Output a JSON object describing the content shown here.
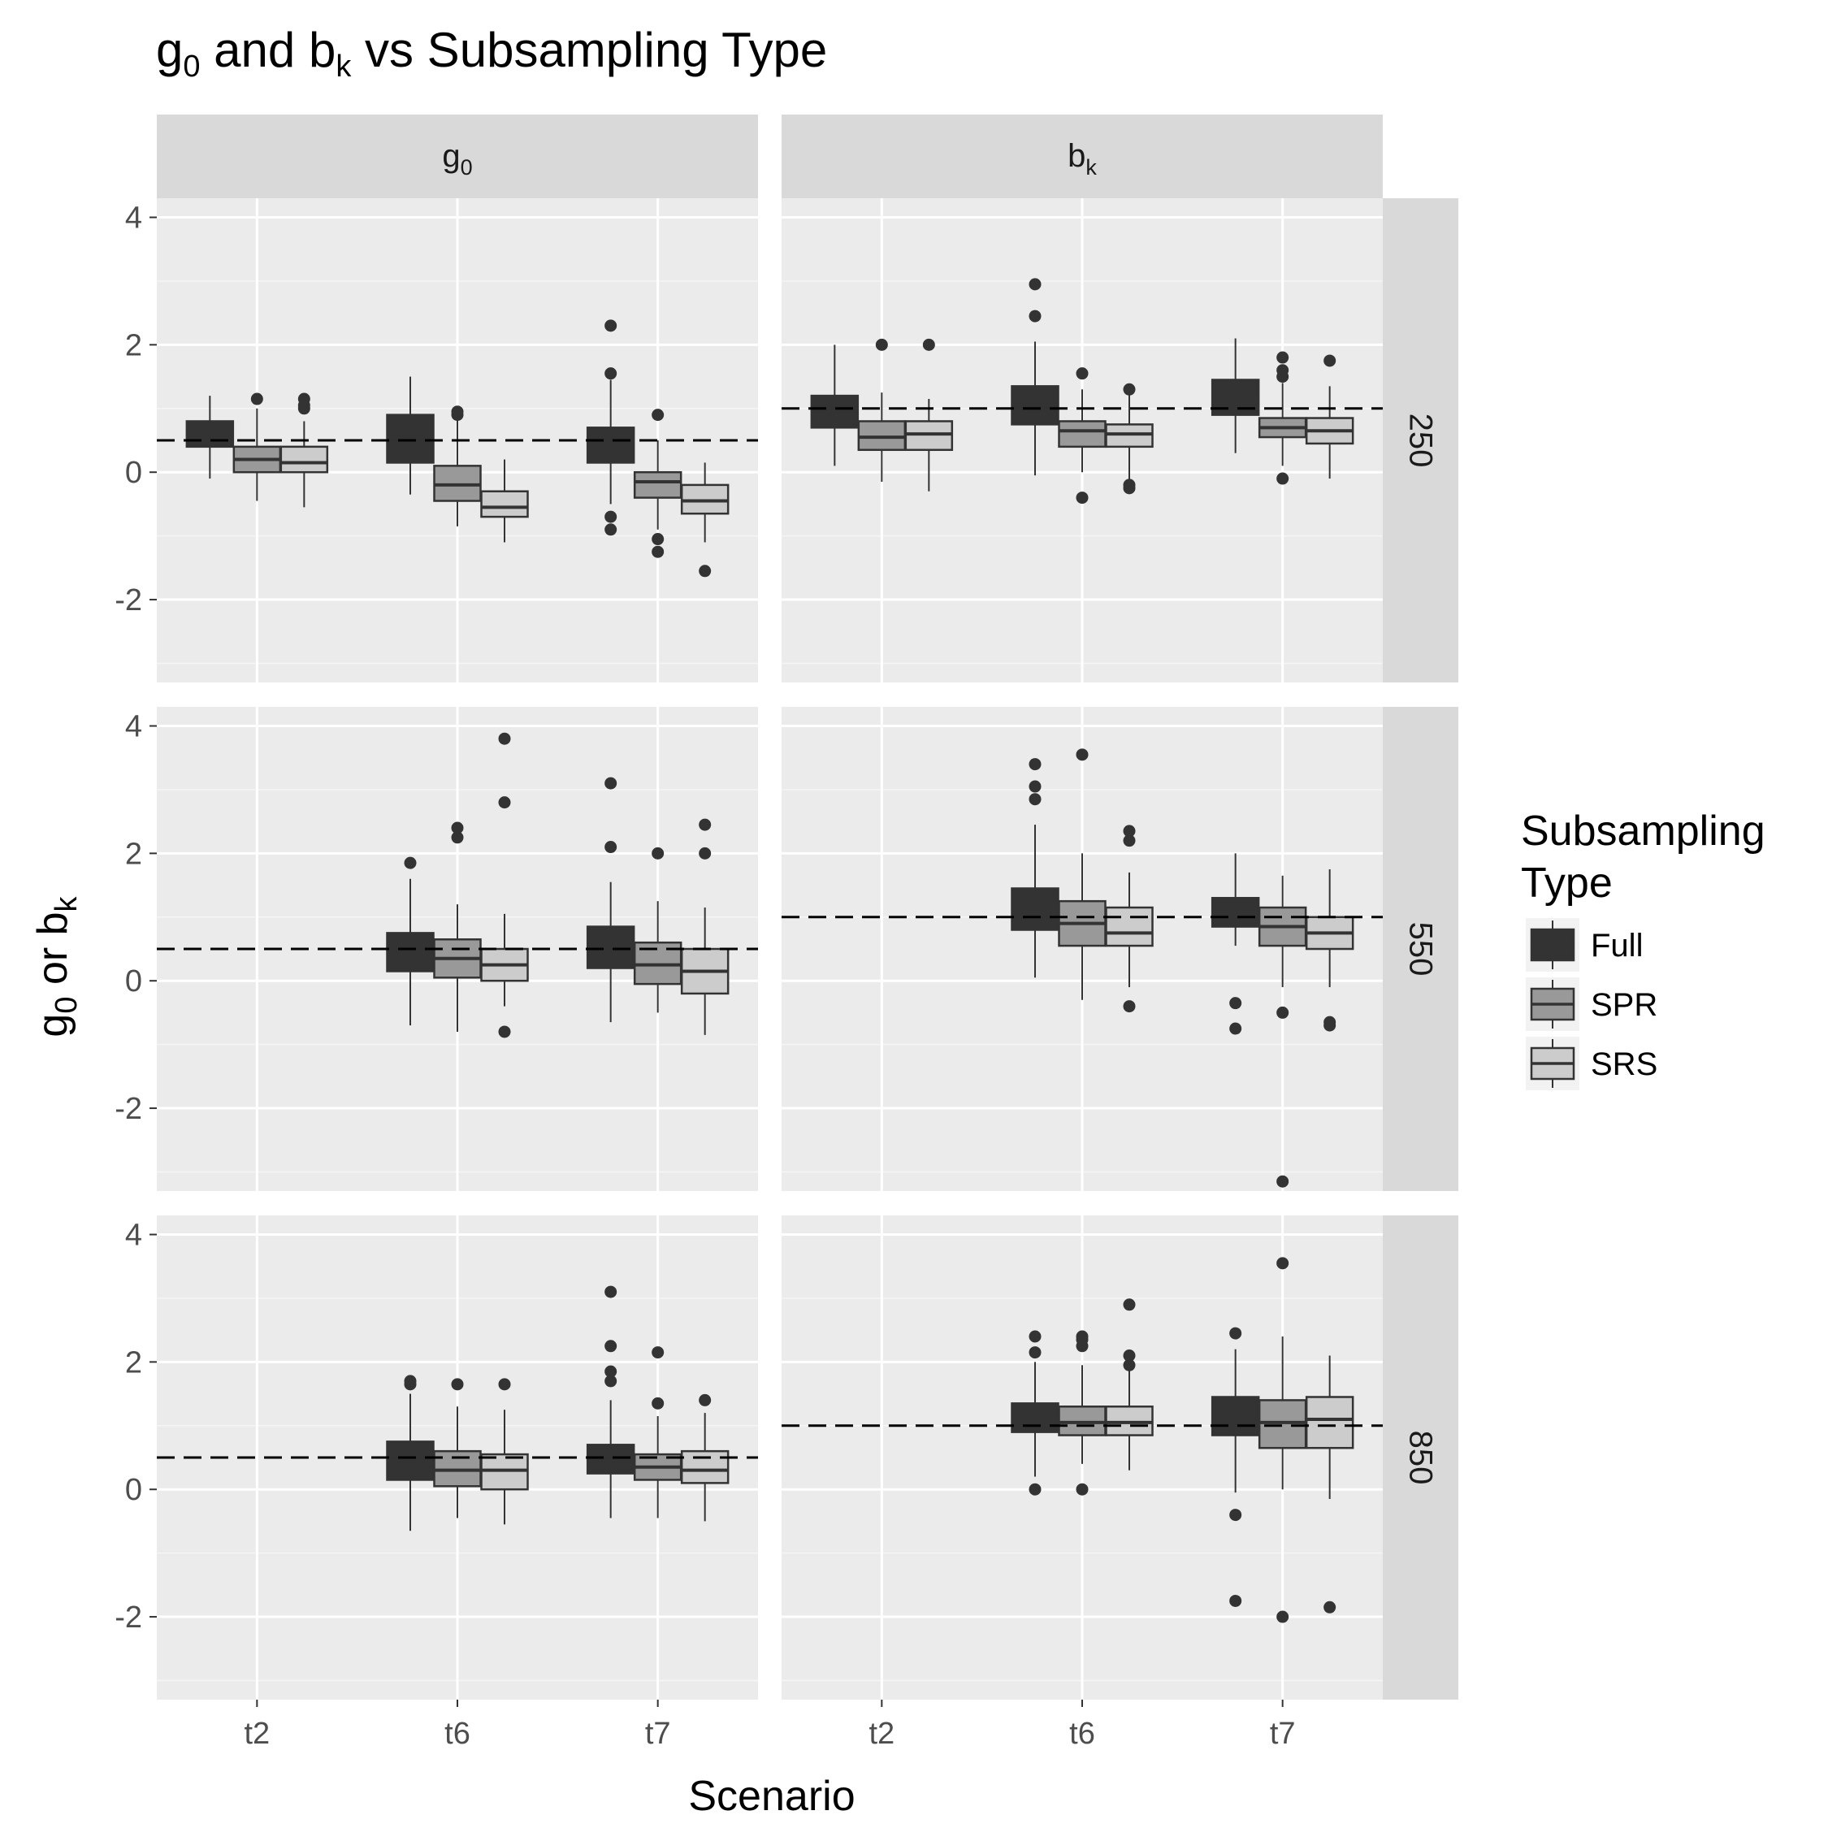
{
  "title": {
    "main": "g",
    "sub": "0",
    "mid": " and b",
    "sub2": "k",
    "rest": " vs Subsampling Type"
  },
  "xlabel": "Scenario",
  "ylabel": {
    "main": "g",
    "sub": "0",
    "mid": " or b",
    "sub2": "k"
  },
  "legend": {
    "title_line1": "Subsampling",
    "title_line2": "Type",
    "placement": "right",
    "items": [
      {
        "label": "Full",
        "color": "#333333"
      },
      {
        "label": "SPR",
        "color": "#999999"
      },
      {
        "label": "SRS",
        "color": "#cccccc"
      }
    ]
  },
  "colors": {
    "panel_bg": "#ebebeb",
    "strip_bg": "#d9d9d9",
    "grid_major": "#ffffff",
    "grid_minor": "#f5f5f5",
    "box_outline": "#333333",
    "reference_line": "#000000"
  },
  "chart_data": {
    "type": "boxplot",
    "facet_columns": [
      {
        "label": "g",
        "sub": "0",
        "reference": 0.5
      },
      {
        "label": "b",
        "sub": "k",
        "reference": 1.0
      }
    ],
    "facet_rows": [
      "250",
      "550",
      "850"
    ],
    "x_categories": [
      "t2",
      "t6",
      "t7"
    ],
    "groups": [
      "Full",
      "SPR",
      "SRS"
    ],
    "ylim": [
      -3.3,
      4.3
    ],
    "y_ticks": [
      -2,
      0,
      2,
      4
    ],
    "grid": true,
    "panels": [
      {
        "row": "250",
        "col": 0,
        "boxes": [
          {
            "x": "t2",
            "group": "Full",
            "min": -0.1,
            "q1": 0.4,
            "median": 0.6,
            "q3": 0.8,
            "max": 1.2,
            "outliers": []
          },
          {
            "x": "t2",
            "group": "SPR",
            "min": -0.45,
            "q1": 0.0,
            "median": 0.2,
            "q3": 0.4,
            "max": 1.0,
            "outliers": [
              1.15
            ]
          },
          {
            "x": "t2",
            "group": "SRS",
            "min": -0.55,
            "q1": 0.0,
            "median": 0.15,
            "q3": 0.4,
            "max": 0.8,
            "outliers": [
              1.0,
              1.05,
              1.15
            ]
          },
          {
            "x": "t6",
            "group": "Full",
            "min": -0.35,
            "q1": 0.15,
            "median": 0.55,
            "q3": 0.9,
            "max": 1.5,
            "outliers": []
          },
          {
            "x": "t6",
            "group": "SPR",
            "min": -0.85,
            "q1": -0.45,
            "median": -0.2,
            "q3": 0.1,
            "max": 0.85,
            "outliers": [
              0.9,
              0.95
            ]
          },
          {
            "x": "t6",
            "group": "SRS",
            "min": -1.1,
            "q1": -0.7,
            "median": -0.55,
            "q3": -0.3,
            "max": 0.2,
            "outliers": []
          },
          {
            "x": "t7",
            "group": "Full",
            "min": -0.5,
            "q1": 0.15,
            "median": 0.45,
            "q3": 0.7,
            "max": 1.45,
            "outliers": [
              1.55,
              2.3,
              -0.7,
              -0.9
            ]
          },
          {
            "x": "t7",
            "group": "SPR",
            "min": -0.9,
            "q1": -0.4,
            "median": -0.15,
            "q3": 0.0,
            "max": 0.5,
            "outliers": [
              0.9,
              -1.05,
              -1.25
            ]
          },
          {
            "x": "t7",
            "group": "SRS",
            "min": -1.1,
            "q1": -0.65,
            "median": -0.45,
            "q3": -0.2,
            "max": 0.15,
            "outliers": [
              -1.55
            ]
          }
        ]
      },
      {
        "row": "250",
        "col": 1,
        "boxes": [
          {
            "x": "t2",
            "group": "Full",
            "min": 0.1,
            "q1": 0.7,
            "median": 1.0,
            "q3": 1.2,
            "max": 2.0,
            "outliers": []
          },
          {
            "x": "t2",
            "group": "SPR",
            "min": -0.15,
            "q1": 0.35,
            "median": 0.55,
            "q3": 0.8,
            "max": 1.25,
            "outliers": [
              2.0
            ]
          },
          {
            "x": "t2",
            "group": "SRS",
            "min": -0.3,
            "q1": 0.35,
            "median": 0.6,
            "q3": 0.8,
            "max": 1.15,
            "outliers": [
              2.0
            ]
          },
          {
            "x": "t6",
            "group": "Full",
            "min": -0.05,
            "q1": 0.75,
            "median": 1.05,
            "q3": 1.35,
            "max": 2.05,
            "outliers": [
              2.45,
              2.95
            ]
          },
          {
            "x": "t6",
            "group": "SPR",
            "min": 0.0,
            "q1": 0.4,
            "median": 0.65,
            "q3": 0.8,
            "max": 1.3,
            "outliers": [
              1.55,
              -0.4
            ]
          },
          {
            "x": "t6",
            "group": "SRS",
            "min": -0.2,
            "q1": 0.4,
            "median": 0.6,
            "q3": 0.75,
            "max": 1.25,
            "outliers": [
              1.3,
              -0.2,
              -0.25
            ]
          },
          {
            "x": "t7",
            "group": "Full",
            "min": 0.3,
            "q1": 0.9,
            "median": 1.15,
            "q3": 1.45,
            "max": 2.1,
            "outliers": []
          },
          {
            "x": "t7",
            "group": "SPR",
            "min": 0.1,
            "q1": 0.55,
            "median": 0.7,
            "q3": 0.85,
            "max": 1.4,
            "outliers": [
              1.5,
              1.6,
              1.8,
              -0.1
            ]
          },
          {
            "x": "t7",
            "group": "SRS",
            "min": -0.1,
            "q1": 0.45,
            "median": 0.65,
            "q3": 0.85,
            "max": 1.35,
            "outliers": [
              1.75
            ]
          }
        ]
      },
      {
        "row": "550",
        "col": 0,
        "boxes": [
          {
            "x": "t6",
            "group": "Full",
            "min": -0.7,
            "q1": 0.15,
            "median": 0.5,
            "q3": 0.75,
            "max": 1.6,
            "outliers": [
              1.85
            ]
          },
          {
            "x": "t6",
            "group": "SPR",
            "min": -0.8,
            "q1": 0.05,
            "median": 0.35,
            "q3": 0.65,
            "max": 1.2,
            "outliers": [
              2.25,
              2.4
            ]
          },
          {
            "x": "t6",
            "group": "SRS",
            "min": -0.4,
            "q1": 0.0,
            "median": 0.25,
            "q3": 0.5,
            "max": 1.05,
            "outliers": [
              2.8,
              3.8,
              -0.8
            ]
          },
          {
            "x": "t7",
            "group": "Full",
            "min": -0.65,
            "q1": 0.2,
            "median": 0.5,
            "q3": 0.85,
            "max": 1.55,
            "outliers": [
              2.1,
              3.1
            ]
          },
          {
            "x": "t7",
            "group": "SPR",
            "min": -0.5,
            "q1": -0.05,
            "median": 0.25,
            "q3": 0.6,
            "max": 1.25,
            "outliers": [
              2.0
            ]
          },
          {
            "x": "t7",
            "group": "SRS",
            "min": -0.85,
            "q1": -0.2,
            "median": 0.15,
            "q3": 0.5,
            "max": 1.15,
            "outliers": [
              2.0,
              2.45
            ]
          }
        ]
      },
      {
        "row": "550",
        "col": 1,
        "boxes": [
          {
            "x": "t6",
            "group": "Full",
            "min": 0.05,
            "q1": 0.8,
            "median": 1.1,
            "q3": 1.45,
            "max": 2.45,
            "outliers": [
              2.85,
              3.05,
              3.4
            ]
          },
          {
            "x": "t6",
            "group": "SPR",
            "min": -0.3,
            "q1": 0.55,
            "median": 0.9,
            "q3": 1.25,
            "max": 2.0,
            "outliers": [
              3.55
            ]
          },
          {
            "x": "t6",
            "group": "SRS",
            "min": -0.1,
            "q1": 0.55,
            "median": 0.75,
            "q3": 1.15,
            "max": 1.7,
            "outliers": [
              2.2,
              2.35,
              -0.4
            ]
          },
          {
            "x": "t7",
            "group": "Full",
            "min": 0.55,
            "q1": 0.85,
            "median": 1.1,
            "q3": 1.3,
            "max": 2.0,
            "outliers": [
              -0.35,
              -0.75
            ]
          },
          {
            "x": "t7",
            "group": "SPR",
            "min": -0.1,
            "q1": 0.55,
            "median": 0.85,
            "q3": 1.15,
            "max": 1.65,
            "outliers": [
              -0.5,
              -3.15
            ]
          },
          {
            "x": "t7",
            "group": "SRS",
            "min": -0.1,
            "q1": 0.5,
            "median": 0.75,
            "q3": 1.0,
            "max": 1.75,
            "outliers": [
              -0.65,
              -0.7
            ]
          }
        ]
      },
      {
        "row": "850",
        "col": 0,
        "boxes": [
          {
            "x": "t6",
            "group": "Full",
            "min": -0.65,
            "q1": 0.15,
            "median": 0.45,
            "q3": 0.75,
            "max": 1.5,
            "outliers": [
              1.65,
              1.7
            ]
          },
          {
            "x": "t6",
            "group": "SPR",
            "min": -0.45,
            "q1": 0.05,
            "median": 0.3,
            "q3": 0.6,
            "max": 1.3,
            "outliers": [
              1.65
            ]
          },
          {
            "x": "t6",
            "group": "SRS",
            "min": -0.55,
            "q1": 0.0,
            "median": 0.3,
            "q3": 0.55,
            "max": 1.25,
            "outliers": [
              1.65
            ]
          },
          {
            "x": "t7",
            "group": "Full",
            "min": -0.45,
            "q1": 0.25,
            "median": 0.45,
            "q3": 0.7,
            "max": 1.4,
            "outliers": [
              1.7,
              1.85,
              2.25,
              3.1
            ]
          },
          {
            "x": "t7",
            "group": "SPR",
            "min": -0.45,
            "q1": 0.15,
            "median": 0.35,
            "q3": 0.55,
            "max": 1.15,
            "outliers": [
              1.35,
              2.15
            ]
          },
          {
            "x": "t7",
            "group": "SRS",
            "min": -0.5,
            "q1": 0.1,
            "median": 0.3,
            "q3": 0.6,
            "max": 1.2,
            "outliers": [
              1.4
            ]
          }
        ]
      },
      {
        "row": "850",
        "col": 1,
        "boxes": [
          {
            "x": "t6",
            "group": "Full",
            "min": 0.2,
            "q1": 0.9,
            "median": 1.1,
            "q3": 1.35,
            "max": 2.0,
            "outliers": [
              2.15,
              2.4,
              0.0
            ]
          },
          {
            "x": "t6",
            "group": "SPR",
            "min": 0.4,
            "q1": 0.85,
            "median": 1.05,
            "q3": 1.3,
            "max": 1.95,
            "outliers": [
              2.25,
              2.35,
              2.4,
              0.0
            ]
          },
          {
            "x": "t6",
            "group": "SRS",
            "min": 0.3,
            "q1": 0.85,
            "median": 1.05,
            "q3": 1.3,
            "max": 1.9,
            "outliers": [
              1.95,
              2.1,
              2.9
            ]
          },
          {
            "x": "t7",
            "group": "Full",
            "min": -0.05,
            "q1": 0.85,
            "median": 1.05,
            "q3": 1.45,
            "max": 2.2,
            "outliers": [
              2.45,
              -0.4,
              -1.75
            ]
          },
          {
            "x": "t7",
            "group": "SPR",
            "min": 0.0,
            "q1": 0.65,
            "median": 1.05,
            "q3": 1.4,
            "max": 2.4,
            "outliers": [
              3.55,
              -2.0
            ]
          },
          {
            "x": "t7",
            "group": "SRS",
            "min": -0.15,
            "q1": 0.65,
            "median": 1.1,
            "q3": 1.45,
            "max": 2.1,
            "outliers": [
              -1.85
            ]
          }
        ]
      }
    ]
  }
}
